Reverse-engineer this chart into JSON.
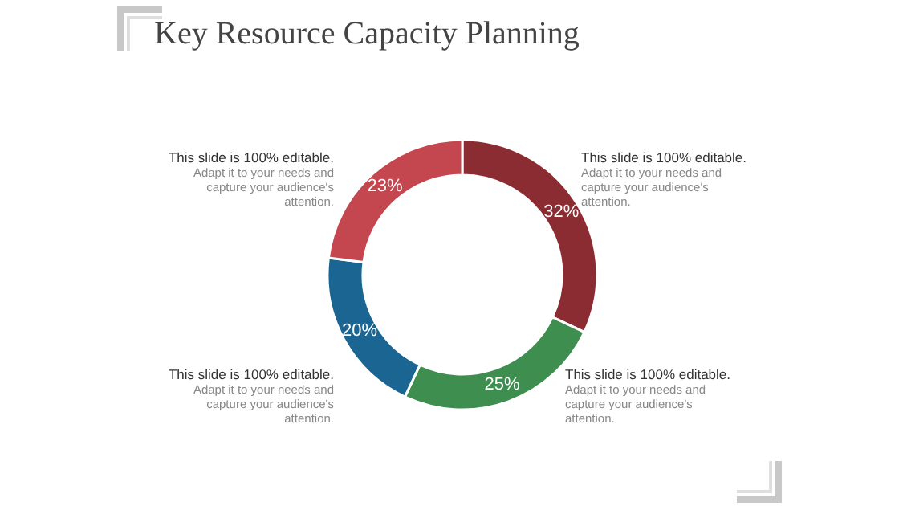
{
  "chart_data": {
    "type": "donut",
    "title": "Key Resource Capacity Planning",
    "categories": [
      null,
      null,
      null,
      null
    ],
    "values": [
      32,
      25,
      20,
      23
    ],
    "colors": [
      "#8b2c33",
      "#3e8e50",
      "#1b6592",
      "#c4464f"
    ],
    "value_labels": [
      "32%",
      "25%",
      "20%",
      "23%"
    ],
    "annotations": [
      "This slide is 100% editable.",
      "Adapt it to your needs and capture your audience's attention.",
      "This slide is 100% editable.",
      "Adapt it to your needs and capture your audience's attention.",
      "This slide is 100% editable.",
      "Adapt it to your needs and capture your audience's attention.",
      "This slide is 100% editable.",
      "Adapt it to your needs and capture your audience's attention."
    ]
  }
}
